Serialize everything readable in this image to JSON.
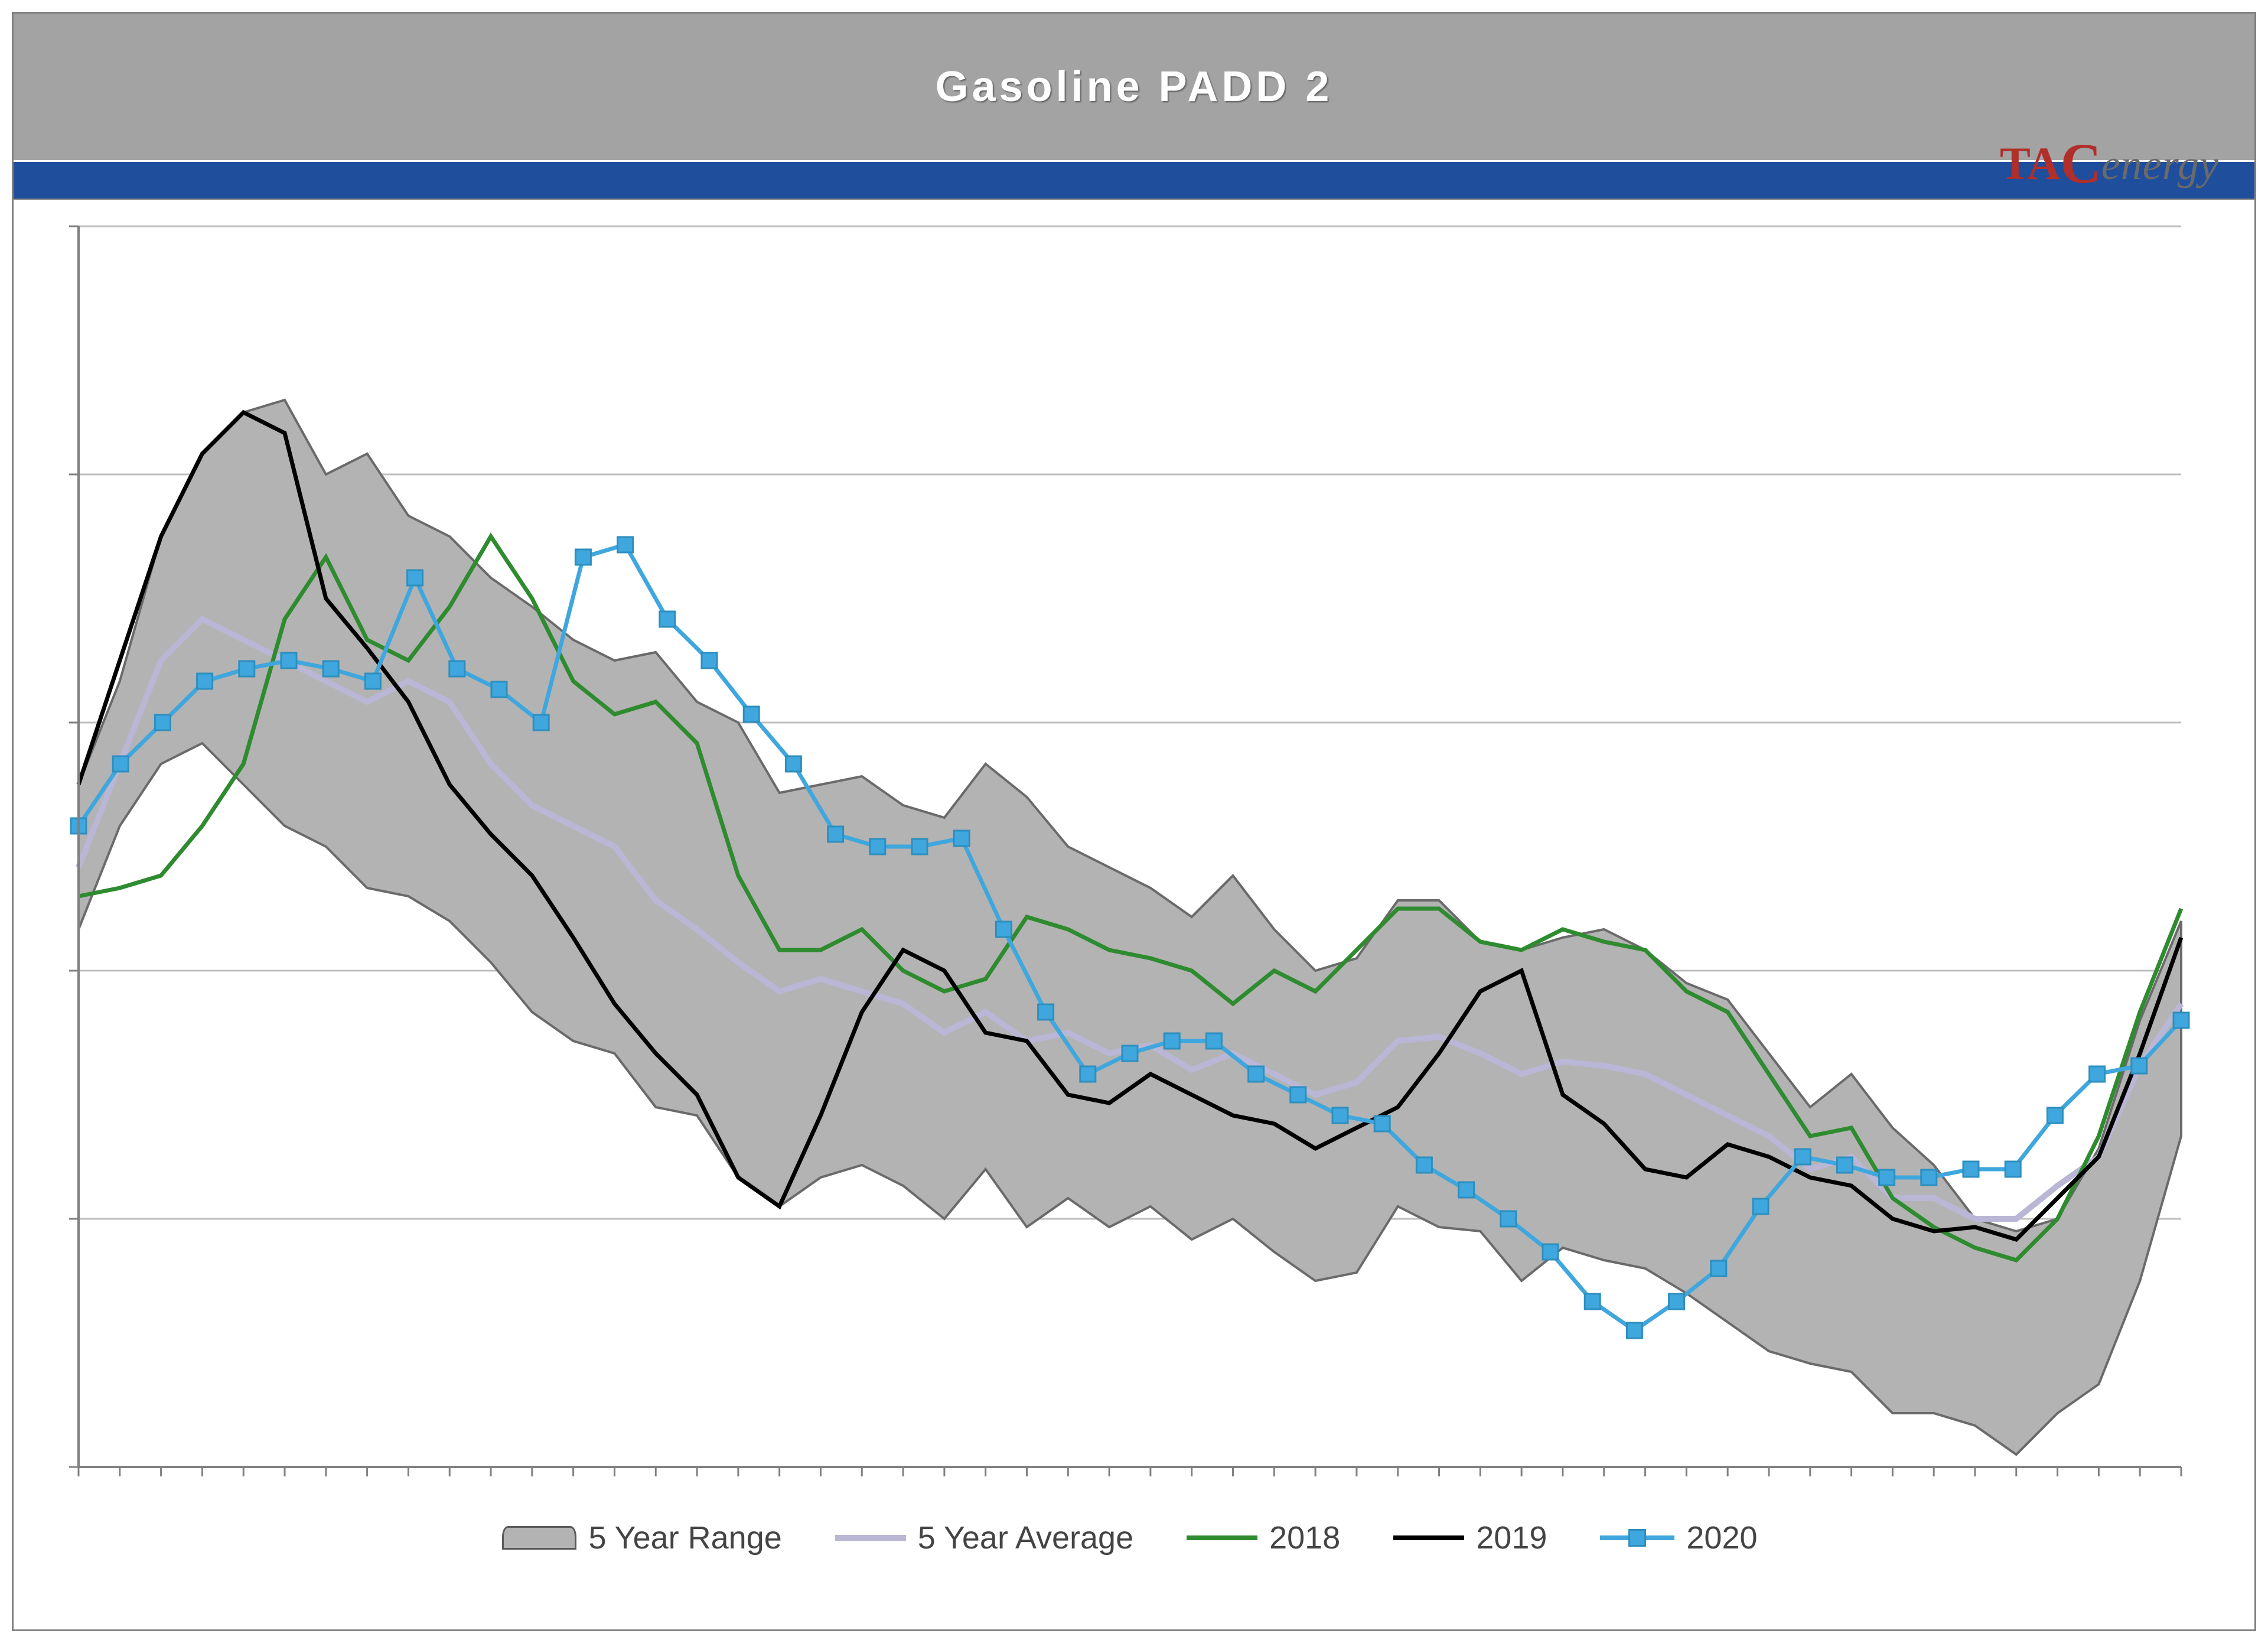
{
  "title": "Gasoline  PADD  2",
  "logo": {
    "prefix": "TAC",
    "suffix": "energy",
    "prefix_color": "#b02f2a",
    "suffix_color": "#6a6a6a"
  },
  "colors": {
    "title_bar_bg": "#a3a3a3",
    "blue_strip": "#1f4e9c",
    "range_fill": "#b3b3b3",
    "range_stroke": "#6a6a6a",
    "avg_line": "#b9b6d6",
    "y2018": "#2f8b2f",
    "y2019": "#000000",
    "y2020_line": "#3fa7dd",
    "y2020_marker": "#3fa7dd",
    "grid": "#bfbfbf",
    "axis": "#808080",
    "plot_bg": "#ffffff"
  },
  "chart": {
    "type": "line-with-band",
    "x_count": 52,
    "ylim": [
      40,
      70
    ],
    "ytick_step": 6,
    "gridlines_y": [
      46,
      52,
      58,
      64,
      70
    ],
    "line_width_thin": 7,
    "line_width_avg": 10,
    "marker_size": 26,
    "legend_fontsize": 54,
    "title_fontsize": 72,
    "range_upper": [
      56.5,
      59.0,
      62.5,
      64.5,
      65.5,
      65.8,
      64.0,
      64.5,
      63.0,
      62.5,
      61.5,
      60.8,
      60.0,
      59.5,
      59.7,
      58.5,
      58.0,
      56.3,
      56.5,
      56.7,
      56.0,
      55.7,
      57.0,
      56.2,
      55.0,
      54.5,
      54.0,
      53.3,
      54.3,
      53.0,
      52.0,
      52.3,
      53.7,
      53.7,
      52.7,
      52.5,
      52.8,
      53.0,
      52.5,
      51.7,
      51.3,
      50.0,
      48.7,
      49.5,
      48.2,
      47.3,
      46.0,
      45.7,
      46.0,
      47.7,
      50.8,
      53.2
    ],
    "range_lower": [
      53.0,
      55.5,
      57.0,
      57.5,
      56.5,
      55.5,
      55.0,
      54.0,
      53.8,
      53.2,
      52.2,
      51.0,
      50.3,
      50.0,
      48.7,
      48.5,
      47.0,
      46.3,
      47.0,
      47.3,
      46.8,
      46.0,
      47.2,
      45.8,
      46.5,
      45.8,
      46.3,
      45.5,
      46.0,
      45.2,
      44.5,
      44.7,
      46.3,
      45.8,
      45.7,
      44.5,
      45.3,
      45.0,
      44.8,
      44.2,
      43.5,
      42.8,
      42.5,
      42.3,
      41.3,
      41.3,
      41.0,
      40.3,
      41.3,
      42.0,
      44.5,
      48.0
    ],
    "avg": [
      54.5,
      57.0,
      59.5,
      60.5,
      60.0,
      59.5,
      59.0,
      58.5,
      59.0,
      58.5,
      57.0,
      56.0,
      55.5,
      55.0,
      53.7,
      53.0,
      52.2,
      51.5,
      51.8,
      51.5,
      51.2,
      50.5,
      51.0,
      50.3,
      50.5,
      50.0,
      50.2,
      49.6,
      50.0,
      49.5,
      49.0,
      49.3,
      50.3,
      50.4,
      50.0,
      49.5,
      49.8,
      49.7,
      49.5,
      49.0,
      48.5,
      48.0,
      47.2,
      47.5,
      46.5,
      46.5,
      46.0,
      46.0,
      46.8,
      47.5,
      49.7,
      51.2
    ],
    "y2018": [
      53.8,
      54.0,
      54.3,
      55.5,
      57.0,
      60.5,
      62.0,
      60.0,
      59.5,
      60.8,
      62.5,
      61.0,
      59.0,
      58.2,
      58.5,
      57.5,
      54.3,
      52.5,
      52.5,
      53.0,
      52.0,
      51.5,
      51.8,
      53.3,
      53.0,
      52.5,
      52.3,
      52.0,
      51.2,
      52.0,
      51.5,
      52.5,
      53.5,
      53.5,
      52.7,
      52.5,
      53.0,
      52.7,
      52.5,
      51.5,
      51.0,
      49.5,
      48.0,
      48.2,
      46.5,
      45.8,
      45.3,
      45.0,
      46.0,
      48.0,
      51.0,
      53.5
    ],
    "y2019": [
      56.5,
      59.5,
      62.5,
      64.5,
      65.5,
      65.0,
      61.0,
      59.8,
      58.5,
      56.5,
      55.3,
      54.3,
      52.8,
      51.2,
      50.0,
      49.0,
      47.0,
      46.3,
      48.5,
      51.0,
      52.5,
      52.0,
      50.5,
      50.3,
      49.0,
      48.8,
      49.5,
      49.0,
      48.5,
      48.3,
      47.7,
      48.2,
      48.7,
      50.0,
      51.5,
      52.0,
      49.0,
      48.3,
      47.2,
      47.0,
      47.8,
      47.5,
      47.0,
      46.8,
      46.0,
      45.7,
      45.8,
      45.5,
      46.5,
      47.5,
      50.0,
      52.8
    ],
    "y2020": [
      55.5,
      57.0,
      58.0,
      59.0,
      59.3,
      59.5,
      59.3,
      59.0,
      61.5,
      59.3,
      58.8,
      58.0,
      62.0,
      62.3,
      60.5,
      59.5,
      58.2,
      57.0,
      55.3,
      55.0,
      55.0,
      55.2,
      53.0,
      51.0,
      49.5,
      50.0,
      50.3,
      50.3,
      49.5,
      49.0,
      48.5,
      48.3,
      47.3,
      46.7,
      46.0,
      45.2,
      44.0,
      43.3,
      44.0,
      44.8,
      46.3,
      47.5,
      47.3,
      47.0,
      47.0,
      47.2,
      47.2,
      48.5,
      49.5,
      49.7,
      50.8
    ]
  },
  "legend": {
    "range": "5 Year Range",
    "avg": "5 Year Average",
    "y2018": "2018",
    "y2019": "2019",
    "y2020": "2020"
  }
}
